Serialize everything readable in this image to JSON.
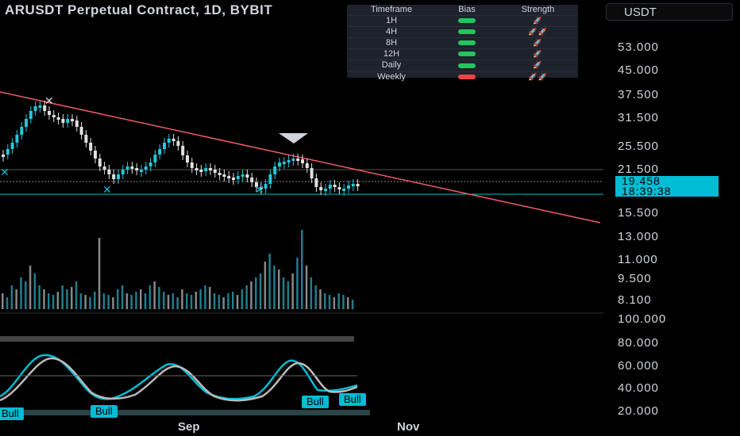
{
  "chart_title": "ARUSDT Perpetual Contract, 1D, BYBIT",
  "currency_button": "USDT",
  "bias_table": {
    "headers": [
      "Timeframe",
      "Bias",
      "Strength"
    ],
    "rows": [
      {
        "timeframe": "1H",
        "bias": "bull"
      },
      {
        "timeframe": "4H",
        "bias": "bull"
      },
      {
        "timeframe": "8H",
        "bias": "bull"
      },
      {
        "timeframe": "12H",
        "bias": "bull"
      },
      {
        "timeframe": "Daily",
        "bias": "bull"
      },
      {
        "timeframe": "Weekly",
        "bias": "bear"
      }
    ],
    "bull_color": "#22c55e",
    "bear_color": "#ef4444"
  },
  "price_axis": [
    "53.000",
    "45.000",
    "37.500",
    "31.500",
    "25.500",
    "21.500",
    "15.500",
    "13.000",
    "11.000",
    "9.500",
    "8.100"
  ],
  "current_price": "19.458",
  "countdown": "18:39:38",
  "oscillator_axis": [
    "100.000",
    "80.000",
    "60.000",
    "40.000",
    "20.000"
  ],
  "x_axis": [
    "Sep",
    "Nov"
  ],
  "bull_labels": [
    "Bull",
    "Bull",
    "Bull",
    "Bull"
  ],
  "colors": {
    "accent": "#00bcd4",
    "trendline": "#f05a6a",
    "up": "#26c6da",
    "down": "#e0e0e0",
    "volume": "#1f7d8c"
  }
}
